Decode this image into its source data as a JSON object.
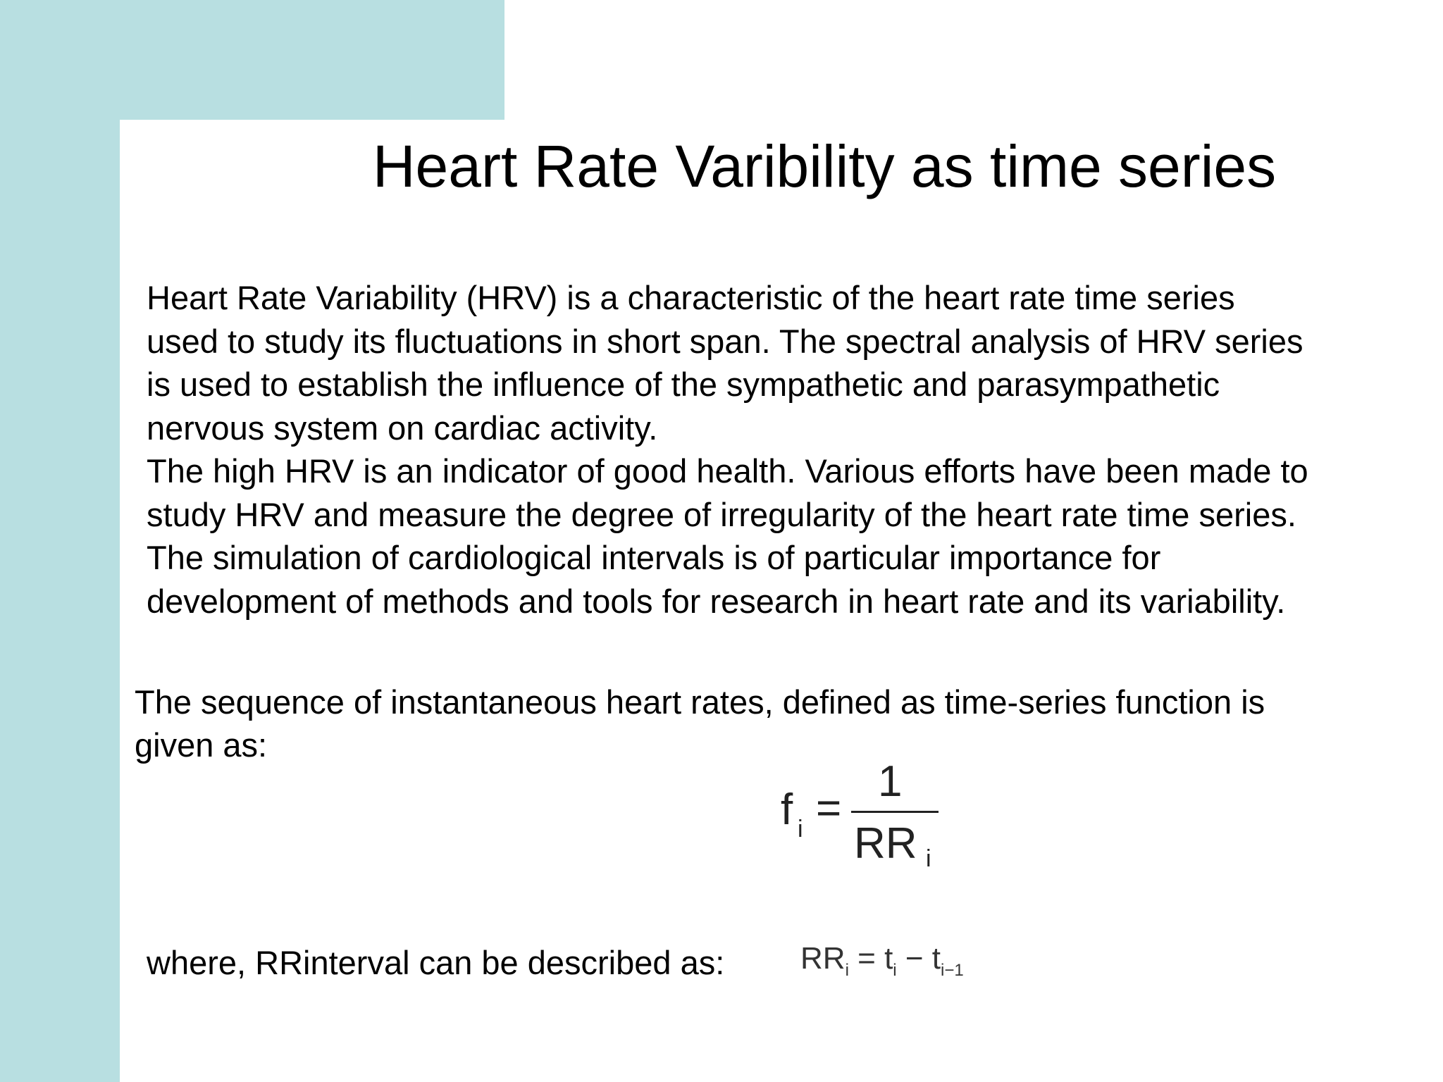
{
  "slide": {
    "title": "Heart Rate Varibility as time series",
    "paragraph_lines": [
      "Heart Rate Variability (HRV) is a characteristic of the heart rate time series",
      "used to study its fluctuations in short span. The spectral analysis of HRV series",
      "is used to establish the influence of the sympathetic and parasympathetic",
      "nervous system on cardiac activity.",
      "The high HRV is an indicator of good health. Various efforts have been made to",
      "study HRV and measure the degree of irregularity of the heart rate time series.",
      "The simulation of cardiological intervals is of particular importance for",
      "development of methods and tools for research in heart rate and its variability."
    ],
    "sequence_lines": [
      "The sequence of instantaneous heart rates, defined as time-series function is",
      "given as:"
    ],
    "formula1": {
      "lhs": "f",
      "lhs_sub": "i",
      "eq": "=",
      "numerator": "1",
      "denominator": "RR",
      "denominator_sub": "i"
    },
    "where_text": "where, RRinterval can be described as:",
    "formula2": {
      "lhs": "RR",
      "lhs_sub": "i",
      "eq": " = ",
      "t1": "t",
      "t1_sub": "i",
      "minus": " − ",
      "t2": "t",
      "t2_sub": "i−1"
    },
    "colors": {
      "accent_band": "#b8dfe1",
      "background": "#ffffff",
      "text": "#000000"
    }
  }
}
